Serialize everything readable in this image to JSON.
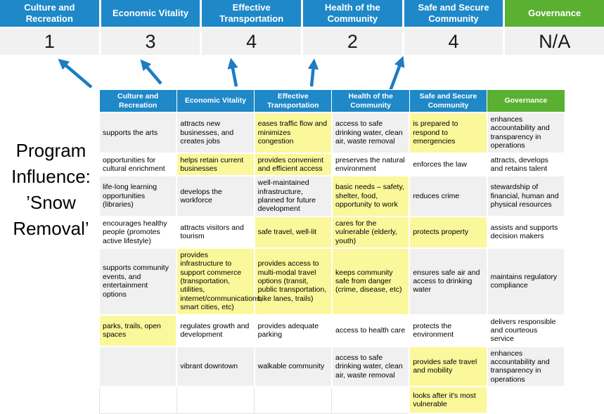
{
  "colors": {
    "header_blue": "#1E88C8",
    "header_green": "#5AB031",
    "score_band_gray": "#F1F1F1",
    "row_stripe_gray": "#F0F0F0",
    "highlight_yellow": "#FAF89B",
    "arrow_blue": "#1C7CC4"
  },
  "program_label": {
    "text": "Program\nInfluence:\n’Snow\nRemoval’"
  },
  "scoreboard": {
    "columns": [
      {
        "label": "Culture and Recreation",
        "score": "1",
        "theme": "blue"
      },
      {
        "label": "Economic Vitality",
        "score": "3",
        "theme": "blue"
      },
      {
        "label": "Effective Transportation",
        "score": "4",
        "theme": "blue"
      },
      {
        "label": "Health of the Community",
        "score": "2",
        "theme": "blue"
      },
      {
        "label": "Safe and Secure Community",
        "score": "4",
        "theme": "blue"
      },
      {
        "label": "Governance",
        "score": "N/A",
        "theme": "green"
      }
    ]
  },
  "matrix": {
    "headers": [
      {
        "label": "Culture and Recreation",
        "theme": "blue"
      },
      {
        "label": "Economic Vitality",
        "theme": "blue"
      },
      {
        "label": "Effective Transportation",
        "theme": "blue"
      },
      {
        "label": "Health of the Community",
        "theme": "blue"
      },
      {
        "label": "Safe and Secure Community",
        "theme": "blue"
      },
      {
        "label": "Governance",
        "theme": "green"
      }
    ],
    "rows": [
      {
        "cells": [
          {
            "t": "supports the arts"
          },
          {
            "t": "attracts new businesses, and creates jobs"
          },
          {
            "t": "eases traffic flow and minimizes congestion",
            "h": true
          },
          {
            "t": "access to safe drinking water, clean air, waste removal"
          },
          {
            "t": "is prepared to respond to emergencies",
            "h": true
          },
          {
            "t": "enhances accountability and transparency in operations"
          }
        ]
      },
      {
        "cells": [
          {
            "t": "opportunities for cultural enrichment"
          },
          {
            "t": "helps retain current businesses",
            "h": true
          },
          {
            "t": "provides convenient and efficient access",
            "h": true
          },
          {
            "t": "preserves the natural environment"
          },
          {
            "t": "enforces the law"
          },
          {
            "t": "attracts, develops and retains talent"
          }
        ]
      },
      {
        "cells": [
          {
            "t": "life-long learning opportunities (libraries)"
          },
          {
            "t": "develops the workforce"
          },
          {
            "t": "well-maintained infrastructure, planned for future development"
          },
          {
            "t": "basic needs – safety, shelter, food, opportunity to work",
            "h": true
          },
          {
            "t": "reduces crime"
          },
          {
            "t": "stewardship of financial, human and physical resources"
          }
        ]
      },
      {
        "cells": [
          {
            "t": "encourages healthy people (promotes active lifestyle)"
          },
          {
            "t": "attracts visitors and tourism"
          },
          {
            "t": "safe travel, well-lit",
            "h": true
          },
          {
            "t": "cares for the vulnerable (elderly, youth)",
            "h": true
          },
          {
            "t": "protects property",
            "h": true
          },
          {
            "t": "assists and supports decision makers"
          }
        ]
      },
      {
        "cells": [
          {
            "t": "supports community events, and entertainment options"
          },
          {
            "t": "provides infrastructure to support commerce (transportation, utilities, internet/communications, smart cities, etc)",
            "h": true
          },
          {
            "t": "provides access to multi-modal travel options (transit, public transportation, bike lanes, trails)",
            "h": true
          },
          {
            "t": "keeps community safe from danger (crime, disease, etc)",
            "h": true
          },
          {
            "t": "ensures safe air and access to drinking water"
          },
          {
            "t": "maintains regulatory compliance"
          }
        ]
      },
      {
        "cells": [
          {
            "t": "parks, trails, open spaces",
            "h": true
          },
          {
            "t": "regulates growth and development"
          },
          {
            "t": "provides adequate parking"
          },
          {
            "t": "access to health care"
          },
          {
            "t": "protects the environment"
          },
          {
            "t": "delivers responsible and courteous service"
          }
        ]
      },
      {
        "cells": [
          {
            "t": ""
          },
          {
            "t": "vibrant downtown"
          },
          {
            "t": "walkable community"
          },
          {
            "t": "access to safe drinking water, clean air, waste removal"
          },
          {
            "t": "provides safe travel and mobility",
            "h": true
          },
          {
            "t": "enhances accountability and transparency in operations"
          }
        ]
      },
      {
        "cells": [
          {
            "t": ""
          },
          {
            "t": ""
          },
          {
            "t": ""
          },
          {
            "t": ""
          },
          {
            "t": "looks after it's most vulnerable",
            "h": true
          },
          {
            "t": "",
            "blank": true
          }
        ]
      }
    ]
  }
}
